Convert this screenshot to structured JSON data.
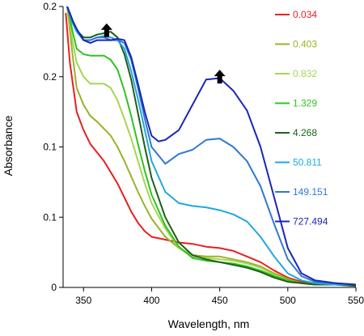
{
  "chart_data": {
    "type": "line",
    "title": "",
    "xlabel": "Wavelength, nm",
    "ylabel": "Absorbance",
    "xlim": [
      335,
      550
    ],
    "ylim": [
      0,
      0.2
    ],
    "x_ticks": [
      350,
      400,
      450,
      500,
      550
    ],
    "x_tick_labels": [
      "350",
      "400",
      "450",
      "500",
      "550"
    ],
    "y_ticks": [
      0,
      0.05,
      0.1,
      0.15,
      0.2
    ],
    "y_tick_labels": [
      "0",
      "0.1",
      "0.1",
      "0.2",
      "0.2"
    ],
    "grid": false,
    "legend_position": "right",
    "annotations": [
      {
        "type": "up-arrow",
        "x": 367,
        "y": 0.188
      },
      {
        "type": "up-arrow",
        "x": 450,
        "y": 0.155
      }
    ],
    "series": [
      {
        "name": "0.034",
        "color": "#e8201f",
        "points": [
          [
            337,
            0.195
          ],
          [
            340,
            0.16
          ],
          [
            345,
            0.125
          ],
          [
            350,
            0.112
          ],
          [
            355,
            0.102
          ],
          [
            360,
            0.096
          ],
          [
            365,
            0.09
          ],
          [
            370,
            0.082
          ],
          [
            375,
            0.074
          ],
          [
            380,
            0.064
          ],
          [
            385,
            0.054
          ],
          [
            390,
            0.046
          ],
          [
            395,
            0.04
          ],
          [
            400,
            0.036
          ],
          [
            410,
            0.034
          ],
          [
            420,
            0.032
          ],
          [
            430,
            0.031
          ],
          [
            440,
            0.029
          ],
          [
            450,
            0.028
          ],
          [
            460,
            0.026
          ],
          [
            470,
            0.022
          ],
          [
            480,
            0.018
          ],
          [
            490,
            0.012
          ],
          [
            500,
            0.007
          ],
          [
            510,
            0.004
          ],
          [
            520,
            0.003
          ],
          [
            535,
            0.002
          ],
          [
            550,
            0.002
          ]
        ]
      },
      {
        "name": "0.403",
        "color": "#9bb227",
        "points": [
          [
            338,
            0.2
          ],
          [
            342,
            0.165
          ],
          [
            345,
            0.142
          ],
          [
            350,
            0.13
          ],
          [
            355,
            0.122
          ],
          [
            360,
            0.118
          ],
          [
            365,
            0.113
          ],
          [
            370,
            0.108
          ],
          [
            375,
            0.1
          ],
          [
            380,
            0.09
          ],
          [
            385,
            0.079
          ],
          [
            390,
            0.068
          ],
          [
            395,
            0.058
          ],
          [
            400,
            0.049
          ],
          [
            410,
            0.036
          ],
          [
            420,
            0.028
          ],
          [
            430,
            0.023
          ],
          [
            440,
            0.022
          ],
          [
            450,
            0.022
          ],
          [
            460,
            0.02
          ],
          [
            470,
            0.018
          ],
          [
            480,
            0.015
          ],
          [
            490,
            0.01
          ],
          [
            500,
            0.006
          ],
          [
            510,
            0.003
          ],
          [
            520,
            0.002
          ],
          [
            535,
            0.002
          ],
          [
            550,
            0.001
          ]
        ]
      },
      {
        "name": "0.832",
        "color": "#a4d651",
        "points": [
          [
            338,
            0.2
          ],
          [
            342,
            0.175
          ],
          [
            345,
            0.16
          ],
          [
            350,
            0.15
          ],
          [
            355,
            0.145
          ],
          [
            360,
            0.145
          ],
          [
            365,
            0.145
          ],
          [
            370,
            0.142
          ],
          [
            375,
            0.133
          ],
          [
            380,
            0.12
          ],
          [
            385,
            0.106
          ],
          [
            390,
            0.09
          ],
          [
            395,
            0.074
          ],
          [
            400,
            0.06
          ],
          [
            410,
            0.042
          ],
          [
            420,
            0.028
          ],
          [
            430,
            0.022
          ],
          [
            440,
            0.021
          ],
          [
            450,
            0.02
          ],
          [
            460,
            0.019
          ],
          [
            470,
            0.017
          ],
          [
            480,
            0.014
          ],
          [
            490,
            0.009
          ],
          [
            500,
            0.005
          ],
          [
            510,
            0.003
          ],
          [
            520,
            0.002
          ],
          [
            535,
            0.002
          ],
          [
            550,
            0.001
          ]
        ]
      },
      {
        "name": "1.329",
        "color": "#2ec41e",
        "points": [
          [
            338,
            0.2
          ],
          [
            342,
            0.182
          ],
          [
            345,
            0.17
          ],
          [
            350,
            0.166
          ],
          [
            355,
            0.165
          ],
          [
            360,
            0.165
          ],
          [
            365,
            0.165
          ],
          [
            370,
            0.162
          ],
          [
            375,
            0.155
          ],
          [
            380,
            0.14
          ],
          [
            385,
            0.122
          ],
          [
            390,
            0.102
          ],
          [
            395,
            0.083
          ],
          [
            400,
            0.066
          ],
          [
            410,
            0.044
          ],
          [
            420,
            0.029
          ],
          [
            430,
            0.021
          ],
          [
            440,
            0.019
          ],
          [
            450,
            0.018
          ],
          [
            460,
            0.017
          ],
          [
            470,
            0.015
          ],
          [
            480,
            0.012
          ],
          [
            490,
            0.008
          ],
          [
            500,
            0.005
          ],
          [
            510,
            0.003
          ],
          [
            520,
            0.002
          ],
          [
            535,
            0.002
          ],
          [
            550,
            0.001
          ]
        ]
      },
      {
        "name": "4.268",
        "color": "#1f5e1c",
        "points": [
          [
            338,
            0.2
          ],
          [
            342,
            0.19
          ],
          [
            345,
            0.183
          ],
          [
            350,
            0.178
          ],
          [
            355,
            0.178
          ],
          [
            360,
            0.18
          ],
          [
            365,
            0.181
          ],
          [
            370,
            0.182
          ],
          [
            375,
            0.178
          ],
          [
            380,
            0.166
          ],
          [
            385,
            0.148
          ],
          [
            390,
            0.124
          ],
          [
            395,
            0.1
          ],
          [
            400,
            0.078
          ],
          [
            410,
            0.05
          ],
          [
            420,
            0.032
          ],
          [
            430,
            0.023
          ],
          [
            440,
            0.02
          ],
          [
            450,
            0.018
          ],
          [
            460,
            0.016
          ],
          [
            470,
            0.014
          ],
          [
            480,
            0.011
          ],
          [
            490,
            0.007
          ],
          [
            500,
            0.004
          ],
          [
            510,
            0.003
          ],
          [
            520,
            0.002
          ],
          [
            535,
            0.002
          ],
          [
            550,
            0.001
          ]
        ]
      },
      {
        "name": "50.811",
        "color": "#1fa8e0",
        "points": [
          [
            338,
            0.2
          ],
          [
            342,
            0.188
          ],
          [
            345,
            0.182
          ],
          [
            350,
            0.176
          ],
          [
            355,
            0.176
          ],
          [
            360,
            0.178
          ],
          [
            365,
            0.179
          ],
          [
            370,
            0.178
          ],
          [
            375,
            0.176
          ],
          [
            380,
            0.17
          ],
          [
            385,
            0.154
          ],
          [
            390,
            0.134
          ],
          [
            395,
            0.112
          ],
          [
            400,
            0.09
          ],
          [
            410,
            0.068
          ],
          [
            420,
            0.06
          ],
          [
            430,
            0.058
          ],
          [
            440,
            0.057
          ],
          [
            450,
            0.055
          ],
          [
            460,
            0.052
          ],
          [
            470,
            0.047
          ],
          [
            480,
            0.036
          ],
          [
            490,
            0.022
          ],
          [
            500,
            0.01
          ],
          [
            510,
            0.005
          ],
          [
            520,
            0.003
          ],
          [
            535,
            0.002
          ],
          [
            550,
            0.002
          ]
        ]
      },
      {
        "name": "149.151",
        "color": "#2f78d6",
        "points": [
          [
            338,
            0.2
          ],
          [
            342,
            0.19
          ],
          [
            345,
            0.184
          ],
          [
            350,
            0.176
          ],
          [
            355,
            0.176
          ],
          [
            360,
            0.178
          ],
          [
            365,
            0.178
          ],
          [
            370,
            0.176
          ],
          [
            375,
            0.176
          ],
          [
            380,
            0.174
          ],
          [
            385,
            0.162
          ],
          [
            390,
            0.142
          ],
          [
            395,
            0.12
          ],
          [
            400,
            0.1
          ],
          [
            410,
            0.088
          ],
          [
            420,
            0.095
          ],
          [
            430,
            0.098
          ],
          [
            440,
            0.105
          ],
          [
            450,
            0.106
          ],
          [
            460,
            0.1
          ],
          [
            470,
            0.09
          ],
          [
            480,
            0.072
          ],
          [
            490,
            0.045
          ],
          [
            500,
            0.02
          ],
          [
            510,
            0.008
          ],
          [
            520,
            0.004
          ],
          [
            535,
            0.003
          ],
          [
            550,
            0.002
          ]
        ]
      },
      {
        "name": "727.494",
        "color": "#1c25b8",
        "points": [
          [
            338,
            0.2
          ],
          [
            342,
            0.19
          ],
          [
            345,
            0.184
          ],
          [
            350,
            0.176
          ],
          [
            355,
            0.174
          ],
          [
            360,
            0.176
          ],
          [
            365,
            0.176
          ],
          [
            370,
            0.176
          ],
          [
            375,
            0.177
          ],
          [
            380,
            0.176
          ],
          [
            385,
            0.164
          ],
          [
            390,
            0.145
          ],
          [
            395,
            0.125
          ],
          [
            400,
            0.108
          ],
          [
            405,
            0.104
          ],
          [
            410,
            0.105
          ],
          [
            420,
            0.112
          ],
          [
            430,
            0.13
          ],
          [
            440,
            0.148
          ],
          [
            450,
            0.149
          ],
          [
            460,
            0.14
          ],
          [
            470,
            0.126
          ],
          [
            480,
            0.1
          ],
          [
            490,
            0.064
          ],
          [
            500,
            0.028
          ],
          [
            510,
            0.01
          ],
          [
            520,
            0.005
          ],
          [
            535,
            0.003
          ],
          [
            550,
            0.002
          ]
        ]
      }
    ]
  }
}
